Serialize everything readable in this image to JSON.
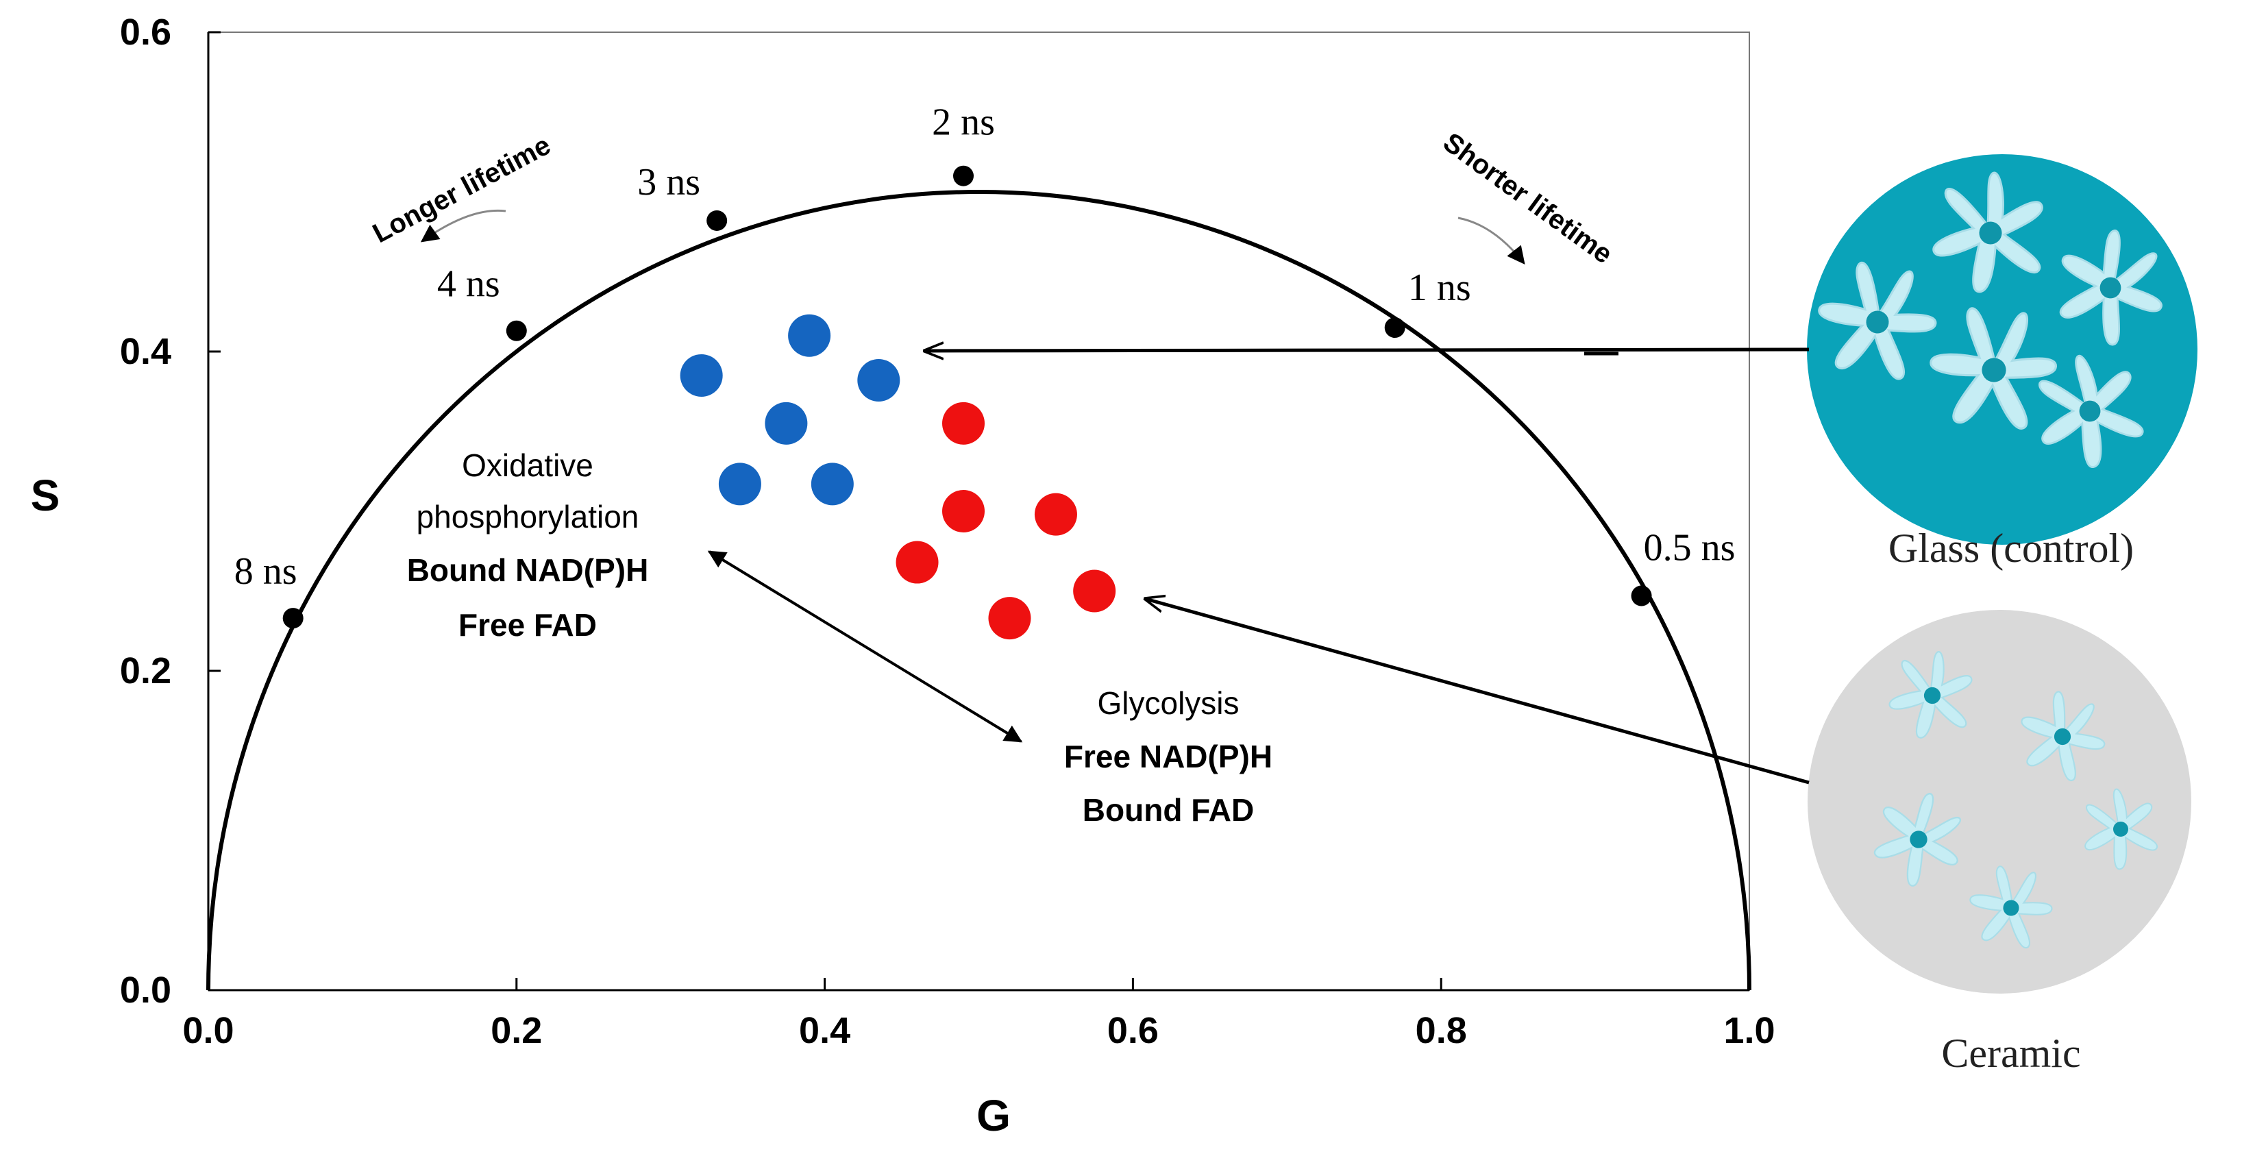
{
  "chart_data": {
    "type": "scatter",
    "xlabel": "G",
    "ylabel": "S",
    "xlim": [
      0.0,
      1.0
    ],
    "ylim": [
      0.0,
      0.6
    ],
    "x_ticks": [
      "0.0",
      "0.2",
      "0.4",
      "0.6",
      "0.8",
      "1.0"
    ],
    "y_ticks": [
      "0.0",
      "0.2",
      "0.4",
      "0.6"
    ],
    "universal_circle": {
      "lifetime_points": [
        {
          "label": "8 ns",
          "g": 0.055,
          "s": 0.233
        },
        {
          "label": "4 ns",
          "g": 0.2,
          "s": 0.413
        },
        {
          "label": "3 ns",
          "g": 0.33,
          "s": 0.482
        },
        {
          "label": "2 ns",
          "g": 0.49,
          "s": 0.51
        },
        {
          "label": "1 ns",
          "g": 0.77,
          "s": 0.415
        },
        {
          "label": "0.5 ns",
          "g": 0.93,
          "s": 0.247
        }
      ]
    },
    "series": [
      {
        "color": "#1565c0",
        "points": [
          {
            "g": 0.39,
            "s": 0.41
          },
          {
            "g": 0.32,
            "s": 0.385
          },
          {
            "g": 0.435,
            "s": 0.382
          },
          {
            "g": 0.375,
            "s": 0.355
          },
          {
            "g": 0.345,
            "s": 0.317
          },
          {
            "g": 0.405,
            "s": 0.317
          }
        ]
      },
      {
        "color": "#ee1111",
        "points": [
          {
            "g": 0.49,
            "s": 0.355
          },
          {
            "g": 0.49,
            "s": 0.3
          },
          {
            "g": 0.55,
            "s": 0.298
          },
          {
            "g": 0.46,
            "s": 0.268
          },
          {
            "g": 0.575,
            "s": 0.25
          },
          {
            "g": 0.52,
            "s": 0.233
          }
        ]
      }
    ],
    "annotations": {
      "longer": "Longer lifetime",
      "shorter": "Shorter lifetime",
      "oxidative": [
        "Oxidative",
        "phosphorylation"
      ],
      "oxidative_bold": [
        "Bound NAD(P)H",
        "Free FAD"
      ],
      "glycolysis": "Glycolysis",
      "glycolysis_bold": [
        "Free NAD(P)H",
        "Bound FAD"
      ]
    },
    "insets": {
      "glass": {
        "label": "Glass (control)",
        "bg": "#0aa3b9"
      },
      "ceramic": {
        "label": "Ceramic",
        "bg": "#d9d9d9"
      }
    }
  }
}
